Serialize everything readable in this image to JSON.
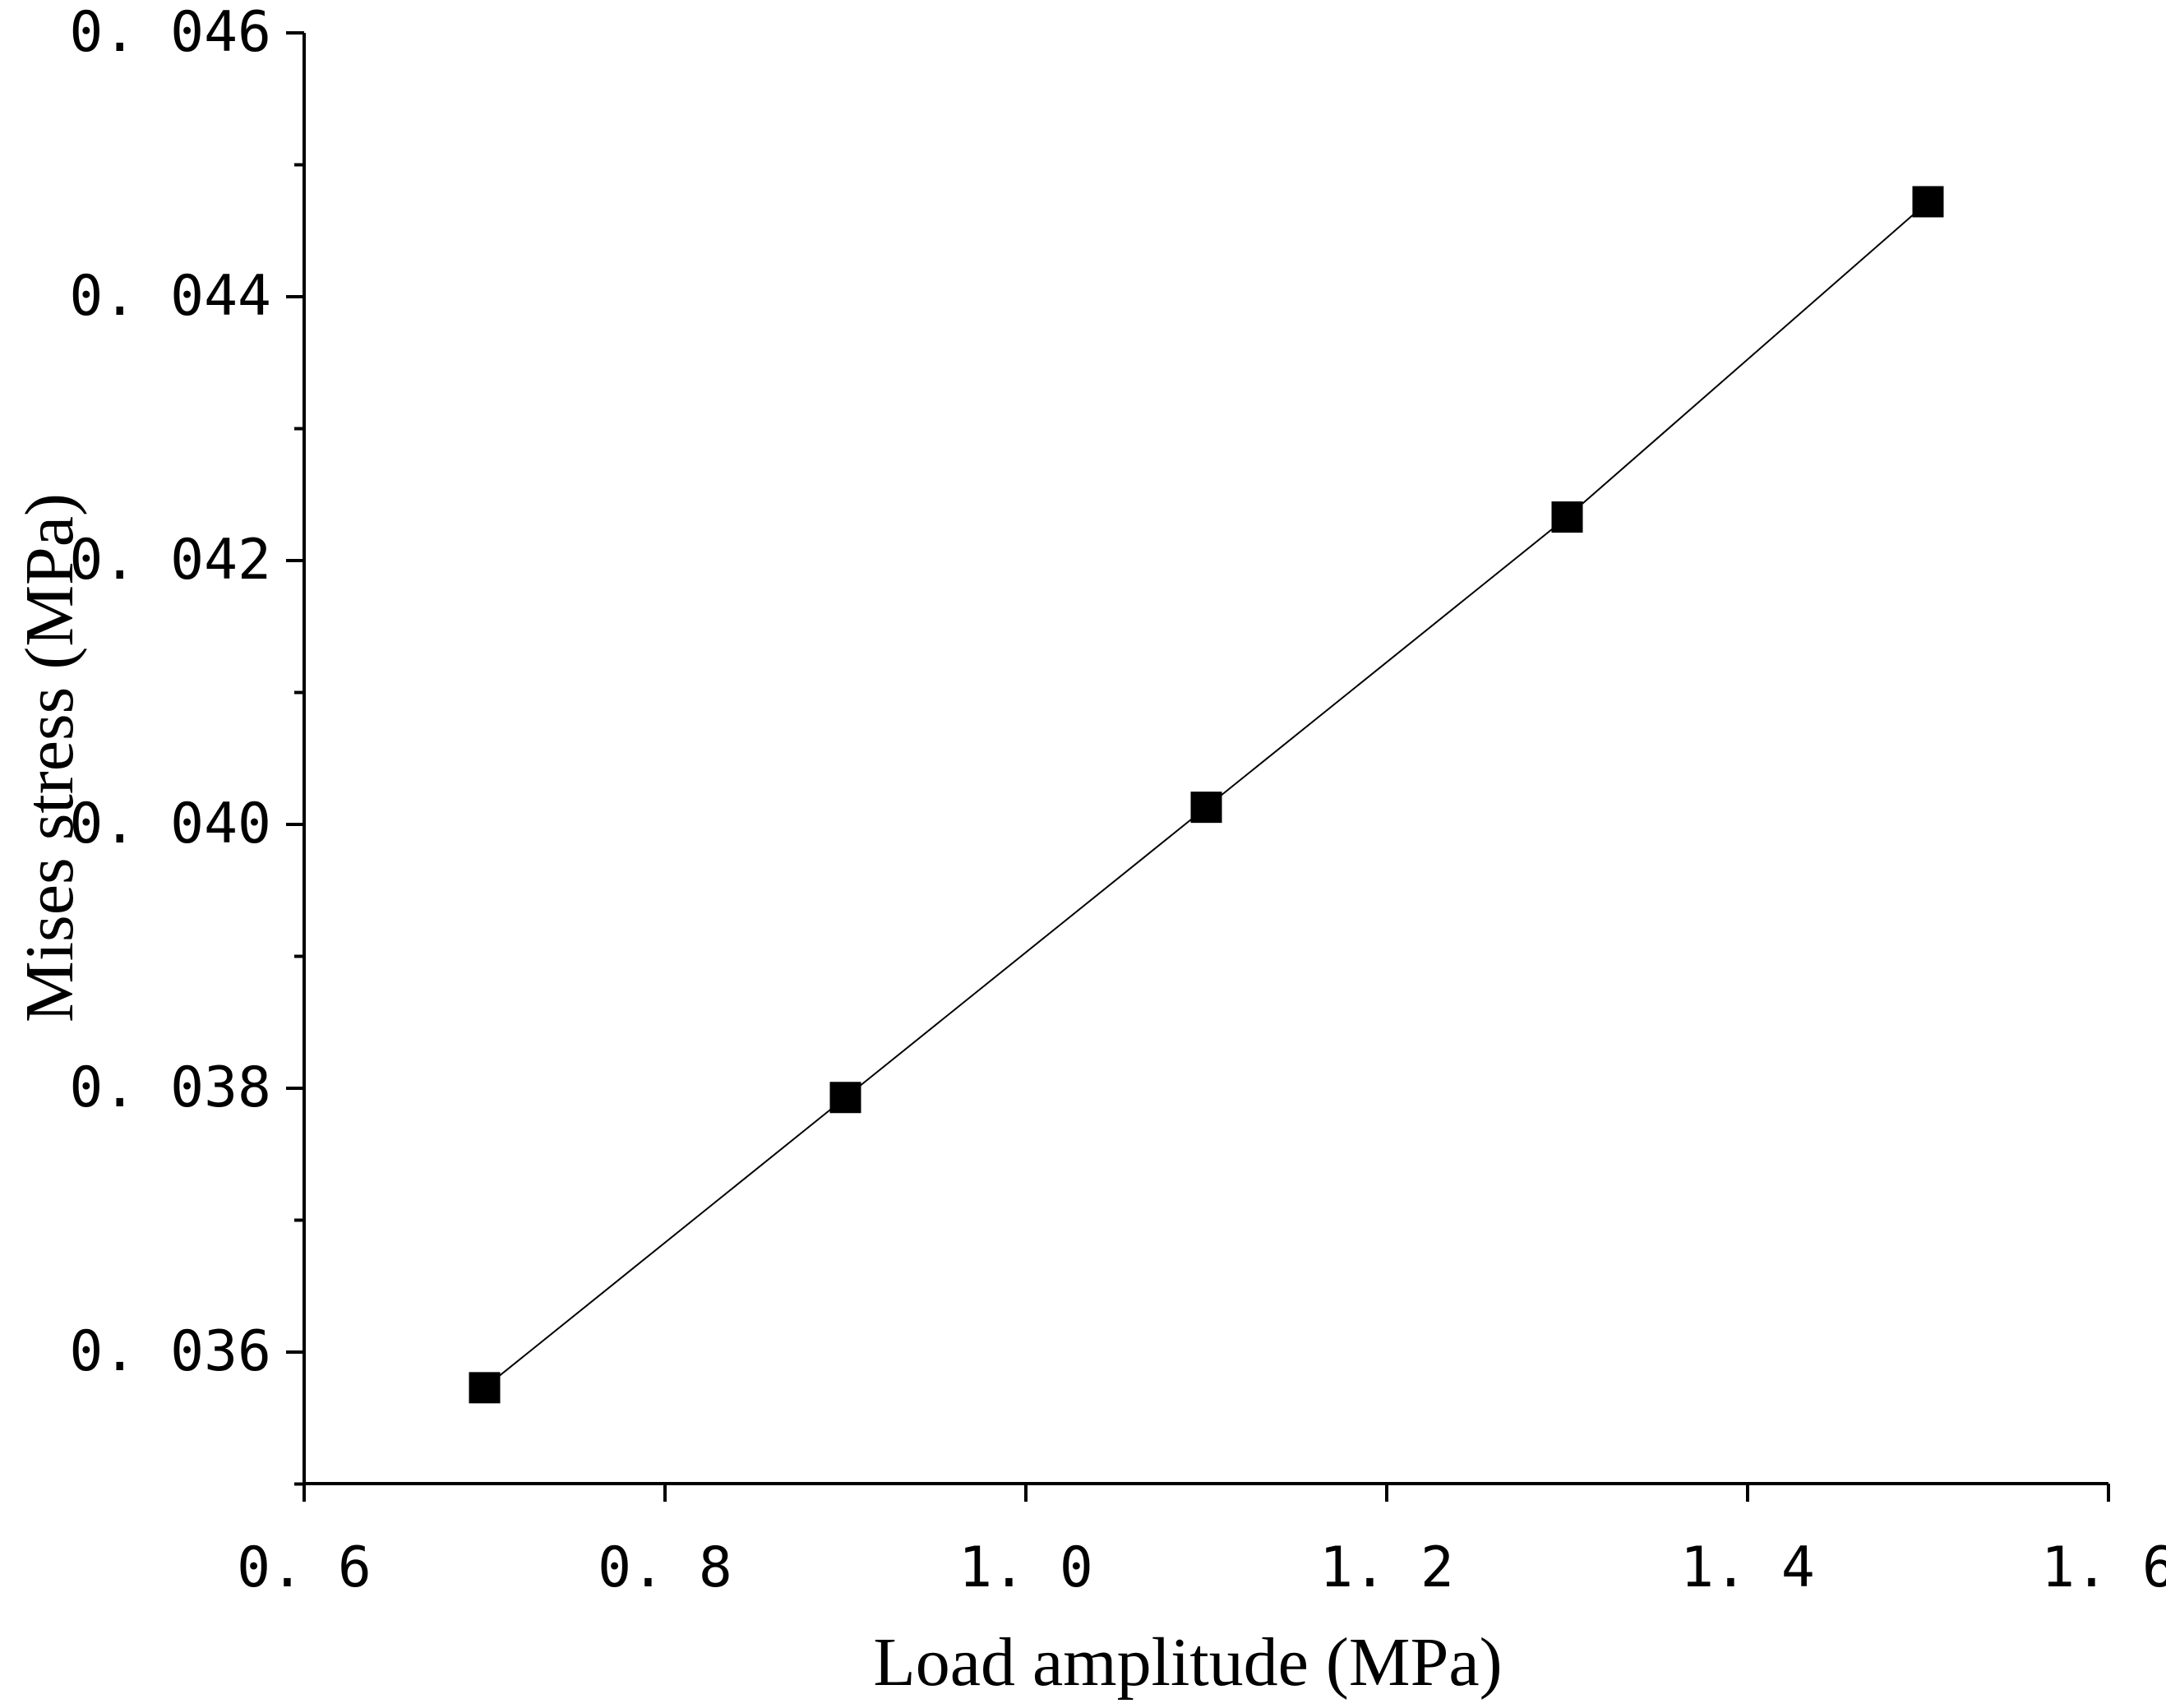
{
  "chart_data": {
    "type": "line",
    "title": "",
    "xlabel": "Load amplitude (MPa)",
    "ylabel": "Mises stress (MPa)",
    "xlim": [
      0.6,
      1.6
    ],
    "ylim": [
      0.035,
      0.046
    ],
    "x_ticks": [
      0.6,
      0.8,
      1.0,
      1.2,
      1.4,
      1.6
    ],
    "x_tick_labels": [
      "0. 6",
      "0. 8",
      "1. 0",
      "1. 2",
      "1. 4",
      "1. 6"
    ],
    "y_ticks": [
      0.036,
      0.038,
      0.04,
      0.042,
      0.044,
      0.046
    ],
    "y_tick_labels": [
      "0. 036",
      "0. 038",
      "0. 040",
      "0. 042",
      "0. 044",
      "0. 046"
    ],
    "y_minor_ticks": [
      0.035,
      0.037,
      0.039,
      0.041,
      0.043,
      0.045
    ],
    "grid": false,
    "legend": "none",
    "series": [
      {
        "name": "Mises stress",
        "marker": "square",
        "color": "#000000",
        "x": [
          0.7,
          0.9,
          1.1,
          1.3,
          1.5
        ],
        "y": [
          0.03573,
          0.03793,
          0.04013,
          0.04233,
          0.04472
        ]
      }
    ]
  }
}
